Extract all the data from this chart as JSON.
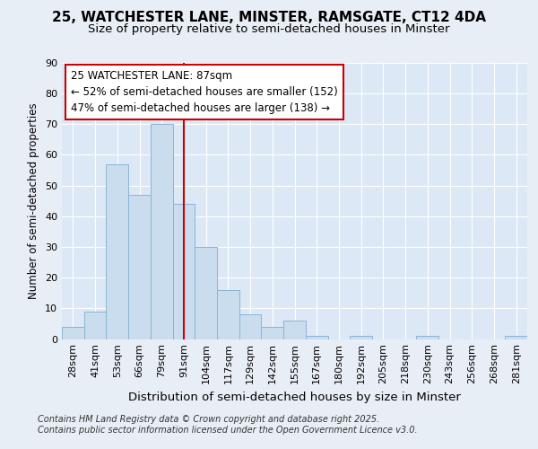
{
  "title": "25, WATCHESTER LANE, MINSTER, RAMSGATE, CT12 4DA",
  "subtitle": "Size of property relative to semi-detached houses in Minster",
  "xlabel": "Distribution of semi-detached houses by size in Minster",
  "ylabel": "Number of semi-detached properties",
  "categories": [
    "28sqm",
    "41sqm",
    "53sqm",
    "66sqm",
    "79sqm",
    "91sqm",
    "104sqm",
    "117sqm",
    "129sqm",
    "142sqm",
    "155sqm",
    "167sqm",
    "180sqm",
    "192sqm",
    "205sqm",
    "218sqm",
    "230sqm",
    "243sqm",
    "256sqm",
    "268sqm",
    "281sqm"
  ],
  "values": [
    4,
    9,
    57,
    47,
    70,
    44,
    30,
    16,
    8,
    4,
    6,
    1,
    0,
    1,
    0,
    0,
    1,
    0,
    0,
    0,
    1
  ],
  "bar_color": "#c9ddef",
  "bar_edge_color": "#8ab4d4",
  "vline_index": 5,
  "vline_color": "#cc0000",
  "annotation_line1": "25 WATCHESTER LANE: 87sqm",
  "annotation_line2": "← 52% of semi-detached houses are smaller (152)",
  "annotation_line3": "47% of semi-detached houses are larger (138) →",
  "annotation_box_color": "#ffffff",
  "annotation_box_edge": "#cc0000",
  "ylim": [
    0,
    90
  ],
  "yticks": [
    0,
    10,
    20,
    30,
    40,
    50,
    60,
    70,
    80,
    90
  ],
  "background_color": "#e8eef5",
  "plot_background": "#dce8f5",
  "grid_color": "#ffffff",
  "footer_text": "Contains HM Land Registry data © Crown copyright and database right 2025.\nContains public sector information licensed under the Open Government Licence v3.0.",
  "title_fontsize": 11,
  "subtitle_fontsize": 9.5,
  "xlabel_fontsize": 9.5,
  "ylabel_fontsize": 8.5,
  "tick_fontsize": 8,
  "annotation_fontsize": 8.5,
  "footer_fontsize": 7
}
